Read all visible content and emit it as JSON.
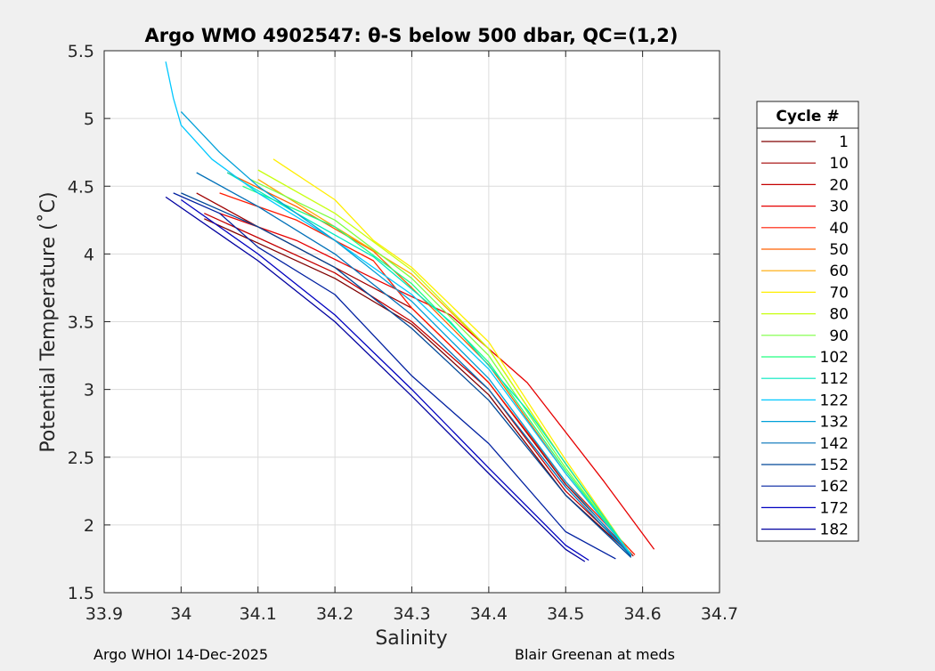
{
  "chart_data": {
    "type": "line",
    "title": "Argo WMO 4902547: θ-S below 500 dbar,  QC=(1,2)",
    "xlabel": "Salinity",
    "ylabel": "Potential Temperature (˚C)",
    "xlim": [
      33.9,
      34.7
    ],
    "ylim": [
      1.5,
      5.5
    ],
    "xticks": [
      33.9,
      34,
      34.1,
      34.2,
      34.3,
      34.4,
      34.5,
      34.6,
      34.7
    ],
    "xtick_labels": [
      "33.9",
      "34",
      "34.1",
      "34.2",
      "34.3",
      "34.4",
      "34.5",
      "34.6",
      "34.7"
    ],
    "yticks": [
      1.5,
      2,
      2.5,
      3,
      3.5,
      4,
      4.5,
      5,
      5.5
    ],
    "ytick_labels": [
      "1.5",
      "2",
      "2.5",
      "3",
      "3.5",
      "4",
      "4.5",
      "5",
      "5.5"
    ],
    "grid": true,
    "legend": {
      "title": "Cycle #",
      "placement": "right-outside",
      "entries": [
        {
          "label": "1",
          "color": "#800000"
        },
        {
          "label": "10",
          "color": "#a00000"
        },
        {
          "label": "20",
          "color": "#c40000"
        },
        {
          "label": "30",
          "color": "#e60000"
        },
        {
          "label": "40",
          "color": "#ff1a00"
        },
        {
          "label": "50",
          "color": "#ff6000"
        },
        {
          "label": "60",
          "color": "#ffa800"
        },
        {
          "label": "70",
          "color": "#ffee00"
        },
        {
          "label": "80",
          "color": "#c8ff10"
        },
        {
          "label": "90",
          "color": "#7cff40"
        },
        {
          "label": "102",
          "color": "#20ff80"
        },
        {
          "label": "112",
          "color": "#00e8c0"
        },
        {
          "label": "122",
          "color": "#00c8ff"
        },
        {
          "label": "132",
          "color": "#00a0d8"
        },
        {
          "label": "142",
          "color": "#0070b8"
        },
        {
          "label": "152",
          "color": "#004898"
        },
        {
          "label": "162",
          "color": "#0020a0"
        },
        {
          "label": "172",
          "color": "#0000c0"
        },
        {
          "label": "182",
          "color": "#0000a0"
        }
      ]
    },
    "series": [
      {
        "color": "#800000",
        "x": [
          34.03,
          34.1,
          34.2,
          34.3,
          34.4,
          34.5,
          34.585
        ],
        "y": [
          4.26,
          4.08,
          3.82,
          3.48,
          2.96,
          2.22,
          1.78
        ]
      },
      {
        "color": "#a00000",
        "x": [
          34.02,
          34.1,
          34.2,
          34.3,
          34.4,
          34.5,
          34.588
        ],
        "y": [
          4.45,
          4.2,
          3.9,
          3.6,
          3.05,
          2.3,
          1.77
        ]
      },
      {
        "color": "#c40000",
        "x": [
          34.03,
          34.1,
          34.2,
          34.3,
          34.4,
          34.5,
          34.585
        ],
        "y": [
          4.3,
          4.12,
          3.86,
          3.5,
          3.0,
          2.25,
          1.79
        ]
      },
      {
        "color": "#e60000",
        "x": [
          34.05,
          34.15,
          34.25,
          34.35,
          34.45,
          34.55,
          34.615
        ],
        "y": [
          4.3,
          4.1,
          3.82,
          3.55,
          3.05,
          2.32,
          1.82
        ]
      },
      {
        "color": "#ff1a00",
        "x": [
          34.05,
          34.15,
          34.25,
          34.3,
          34.4,
          34.5,
          34.59
        ],
        "y": [
          4.45,
          4.25,
          3.95,
          3.6,
          3.05,
          2.32,
          1.78
        ]
      },
      {
        "color": "#ff6000",
        "x": [
          34.06,
          34.15,
          34.25,
          34.3,
          34.4,
          34.5,
          34.585
        ],
        "y": [
          4.6,
          4.35,
          4.02,
          3.75,
          3.18,
          2.38,
          1.78
        ]
      },
      {
        "color": "#ffa800",
        "x": [
          34.1,
          34.2,
          34.3,
          34.4,
          34.5,
          34.585
        ],
        "y": [
          4.55,
          4.2,
          3.85,
          3.3,
          2.45,
          1.78
        ]
      },
      {
        "color": "#ffee00",
        "x": [
          34.12,
          34.2,
          34.25,
          34.3,
          34.4,
          34.5,
          34.585
        ],
        "y": [
          4.7,
          4.4,
          4.1,
          3.9,
          3.35,
          2.48,
          1.78
        ]
      },
      {
        "color": "#c8ff10",
        "x": [
          34.1,
          34.2,
          34.3,
          34.4,
          34.5,
          34.585
        ],
        "y": [
          4.62,
          4.3,
          3.88,
          3.3,
          2.45,
          1.78
        ]
      },
      {
        "color": "#7cff40",
        "x": [
          34.09,
          34.2,
          34.3,
          34.4,
          34.5,
          34.585
        ],
        "y": [
          4.55,
          4.25,
          3.82,
          3.25,
          2.42,
          1.78
        ]
      },
      {
        "color": "#20ff80",
        "x": [
          34.08,
          34.2,
          34.3,
          34.4,
          34.5,
          34.585
        ],
        "y": [
          4.5,
          4.2,
          3.78,
          3.2,
          2.4,
          1.78
        ]
      },
      {
        "color": "#00e8c0",
        "x": [
          34.06,
          34.15,
          34.25,
          34.35,
          34.45,
          34.585
        ],
        "y": [
          4.6,
          4.3,
          3.98,
          3.5,
          2.85,
          1.78
        ]
      },
      {
        "color": "#00c8ff",
        "x": [
          33.98,
          33.99,
          34.0,
          34.04,
          34.1,
          34.2,
          34.3,
          34.4,
          34.5,
          34.585
        ],
        "y": [
          5.42,
          5.15,
          4.95,
          4.7,
          4.45,
          4.1,
          3.7,
          3.15,
          2.38,
          1.78
        ]
      },
      {
        "color": "#00a0d8",
        "x": [
          34.0,
          34.05,
          34.1,
          34.2,
          34.3,
          34.4,
          34.5,
          34.585
        ],
        "y": [
          5.05,
          4.75,
          4.5,
          4.1,
          3.65,
          3.08,
          2.32,
          1.77
        ]
      },
      {
        "color": "#0070b8",
        "x": [
          34.02,
          34.1,
          34.2,
          34.3,
          34.4,
          34.5,
          34.585
        ],
        "y": [
          4.6,
          4.35,
          4.0,
          3.55,
          3.0,
          2.28,
          1.77
        ]
      },
      {
        "color": "#004898",
        "x": [
          34.0,
          34.1,
          34.2,
          34.3,
          34.4,
          34.5,
          34.585
        ],
        "y": [
          4.45,
          4.2,
          3.9,
          3.45,
          2.92,
          2.22,
          1.76
        ]
      },
      {
        "color": "#0020a0",
        "x": [
          33.99,
          34.05,
          34.1,
          34.2,
          34.3,
          34.4,
          34.5,
          34.565
        ],
        "y": [
          4.45,
          4.3,
          4.05,
          3.7,
          3.1,
          2.6,
          1.95,
          1.75
        ]
      },
      {
        "color": "#0000c0",
        "x": [
          34.0,
          34.1,
          34.2,
          34.3,
          34.4,
          34.5,
          34.53
        ],
        "y": [
          4.4,
          4.0,
          3.55,
          3.0,
          2.42,
          1.85,
          1.74
        ]
      },
      {
        "color": "#0000a0",
        "x": [
          33.98,
          34.1,
          34.2,
          34.3,
          34.4,
          34.5,
          34.525
        ],
        "y": [
          4.42,
          3.95,
          3.5,
          2.95,
          2.38,
          1.82,
          1.73
        ]
      }
    ],
    "footer_left": "Argo WHOI 14-Dec-2025",
    "footer_right": "Blair Greenan at meds"
  }
}
